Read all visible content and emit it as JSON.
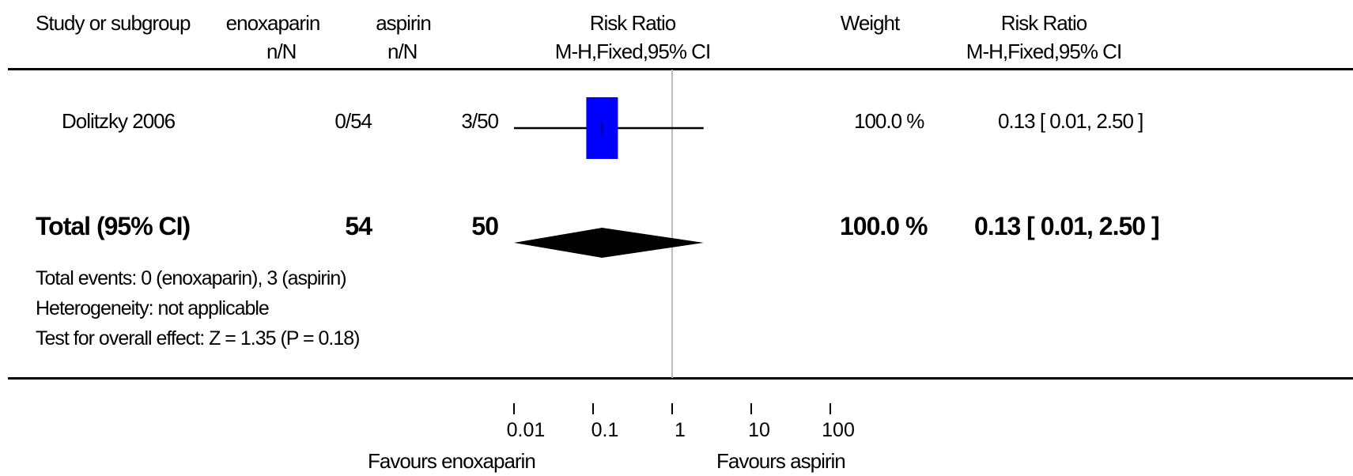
{
  "header": {
    "study": "Study or subgroup",
    "group1": "enoxaparin",
    "group1_sub": "n/N",
    "group2": "aspirin",
    "group2_sub": "n/N",
    "rr": "Risk Ratio",
    "rr_sub": "M-H,Fixed,95% CI",
    "weight": "Weight",
    "rr2": "Risk Ratio",
    "rr2_sub": "M-H,Fixed,95% CI"
  },
  "studies": [
    {
      "name": "Dolitzky 2006",
      "g1": "0/54",
      "g2": "3/50",
      "weight": "100.0 %",
      "ci": "0.13 [ 0.01, 2.50 ]"
    }
  ],
  "total": {
    "label": "Total (95% CI)",
    "g1": "54",
    "g2": "50",
    "weight": "100.0 %",
    "ci_est": "0.13",
    "ci_lo": "0.01,",
    "ci_hi": "2.50",
    "events": "Total events: 0 (enoxaparin), 3 (aspirin)",
    "heterogeneity": "Heterogeneity: not applicable",
    "overall": "Test for overall effect: Z = 1.35 (P = 0.18)"
  },
  "axis": {
    "favours_left": "Favours enoxaparin",
    "favours_right": "Favours aspirin"
  },
  "colors": {
    "study_box": "#0000ff",
    "diamond": "#000000",
    "null_line": "#bbbbbb"
  },
  "chart_data": {
    "type": "forest",
    "scale": "log",
    "xlim": [
      0.01,
      100
    ],
    "ticks": [
      "0.01",
      "0.1",
      "1",
      "10",
      "100"
    ],
    "null_value": 1,
    "studies": [
      {
        "name": "Dolitzky 2006",
        "estimate": 0.13,
        "ci_low": 0.01,
        "ci_high": 2.5,
        "weight_pct": 100.0
      }
    ],
    "pooled": {
      "estimate": 0.13,
      "ci_low": 0.01,
      "ci_high": 2.5
    }
  }
}
